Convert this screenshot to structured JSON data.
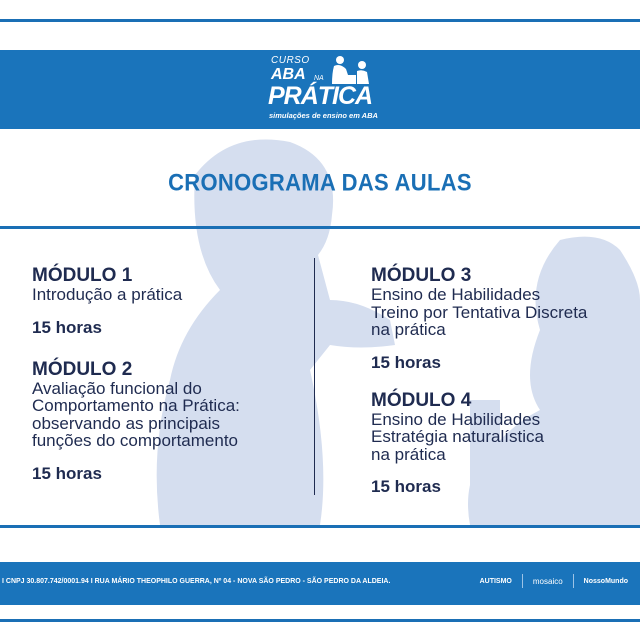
{
  "colors": {
    "brand_blue": "#1a74bb",
    "text_navy": "#1f2b50",
    "silhouette": "#d5deef"
  },
  "logo": {
    "curso": "CURSO",
    "aba": "ABA",
    "na": "NA",
    "pratica": "PRÁTICA",
    "tagline": "simulações de ensino em ABA"
  },
  "title": "CRONOGRAMA DAS AULAS",
  "modules": [
    {
      "heading": "MÓDULO 1",
      "description": [
        "Introdução a prática"
      ],
      "hours": "15 horas"
    },
    {
      "heading": "MÓDULO 2",
      "description": [
        "Avaliação funcional do",
        "Comportamento na Prática:",
        "observando as principais",
        "funções do comportamento"
      ],
      "hours": "15 horas"
    },
    {
      "heading": "MÓDULO 3",
      "description": [
        "Ensino de Habilidades",
        "Treino por Tentativa Discreta",
        "na prática"
      ],
      "hours": "15 horas"
    },
    {
      "heading": "MÓDULO 4",
      "description": [
        "Ensino de Habilidades",
        "Estratégia naturalística",
        "na prática"
      ],
      "hours": "15 horas"
    }
  ],
  "footer": {
    "address": "I CNPJ 30.807.742/0001.94 I RUA MÁRIO THEOPHILO GUERRA, Nº 04 - NOVA SÃO PEDRO - SÃO PEDRO DA ALDEIA.",
    "partners": [
      "AUTISMO",
      "mosaico",
      "NossoMundo"
    ]
  }
}
